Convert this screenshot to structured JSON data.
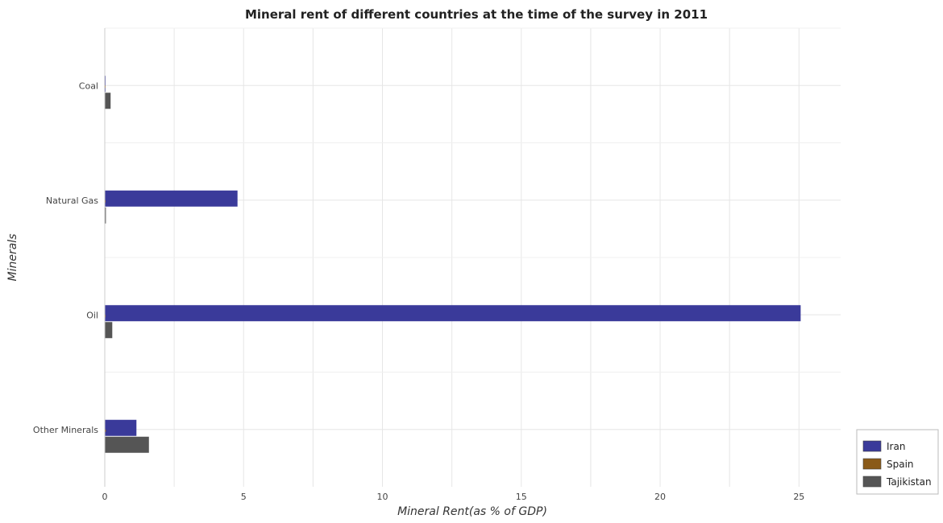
{
  "chart_data": {
    "type": "bar",
    "orientation": "horizontal",
    "title": "Mineral rent of different countries at the time of the survey in 2011",
    "xlabel": "Mineral Rent(as % of GDP)",
    "ylabel": "Minerals",
    "categories": [
      "Coal",
      "Natural Gas",
      "Oil",
      "Other Minerals"
    ],
    "xlim": [
      0,
      26.5
    ],
    "xticks": [
      0,
      5,
      10,
      15,
      20,
      25
    ],
    "grid": true,
    "legend_position": "bottom-right",
    "series": [
      {
        "name": "Iran",
        "color": "#3a3a9a",
        "values": [
          0.02,
          4.78,
          25.06,
          1.14
        ]
      },
      {
        "name": "Spain",
        "color": "#8a5a18",
        "values": [
          0.02,
          0.005,
          0.01,
          0.04
        ]
      },
      {
        "name": "Tajikistan",
        "color": "#555555",
        "values": [
          0.21,
          0.04,
          0.27,
          1.59
        ]
      }
    ]
  }
}
